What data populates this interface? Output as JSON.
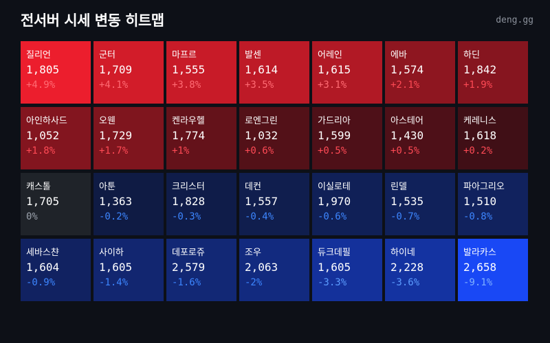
{
  "header": {
    "title": "전서버 시세 변동 히트맵",
    "brand": "deng.gg"
  },
  "colors": {
    "up_text": "#ff4a55",
    "down_text": "#3d86ff",
    "flat_text": "#9aa1ab",
    "flat_bg": "#1f2329"
  },
  "tiles": [
    {
      "name": "질리언",
      "price": "1,805",
      "change": "+4.9%",
      "pct": 4.9
    },
    {
      "name": "군터",
      "price": "1,709",
      "change": "+4.1%",
      "pct": 4.1
    },
    {
      "name": "마프르",
      "price": "1,555",
      "change": "+3.8%",
      "pct": 3.8
    },
    {
      "name": "발센",
      "price": "1,614",
      "change": "+3.5%",
      "pct": 3.5
    },
    {
      "name": "어레인",
      "price": "1,615",
      "change": "+3.1%",
      "pct": 3.1
    },
    {
      "name": "에바",
      "price": "1,574",
      "change": "+2.1%",
      "pct": 2.1
    },
    {
      "name": "하딘",
      "price": "1,842",
      "change": "+1.9%",
      "pct": 1.9
    },
    {
      "name": "아인하사드",
      "price": "1,052",
      "change": "+1.8%",
      "pct": 1.8
    },
    {
      "name": "오웬",
      "price": "1,729",
      "change": "+1.7%",
      "pct": 1.7
    },
    {
      "name": "켄라우헬",
      "price": "1,774",
      "change": "+1%",
      "pct": 1.0
    },
    {
      "name": "로엔그린",
      "price": "1,032",
      "change": "+0.6%",
      "pct": 0.6
    },
    {
      "name": "가드리아",
      "price": "1,599",
      "change": "+0.5%",
      "pct": 0.5
    },
    {
      "name": "아스테어",
      "price": "1,430",
      "change": "+0.5%",
      "pct": 0.5
    },
    {
      "name": "케레니스",
      "price": "1,618",
      "change": "+0.2%",
      "pct": 0.2
    },
    {
      "name": "캐스톨",
      "price": "1,705",
      "change": "0%",
      "pct": 0
    },
    {
      "name": "아툰",
      "price": "1,363",
      "change": "-0.2%",
      "pct": -0.2
    },
    {
      "name": "크리스터",
      "price": "1,828",
      "change": "-0.3%",
      "pct": -0.3
    },
    {
      "name": "데컨",
      "price": "1,557",
      "change": "-0.4%",
      "pct": -0.4
    },
    {
      "name": "이실로테",
      "price": "1,970",
      "change": "-0.6%",
      "pct": -0.6
    },
    {
      "name": "린델",
      "price": "1,535",
      "change": "-0.7%",
      "pct": -0.7
    },
    {
      "name": "파아그리오",
      "price": "1,510",
      "change": "-0.8%",
      "pct": -0.8
    },
    {
      "name": "세바스챤",
      "price": "1,604",
      "change": "-0.9%",
      "pct": -0.9
    },
    {
      "name": "사이하",
      "price": "1,605",
      "change": "-1.4%",
      "pct": -1.4
    },
    {
      "name": "데포로쥬",
      "price": "2,579",
      "change": "-1.6%",
      "pct": -1.6
    },
    {
      "name": "조우",
      "price": "2,063",
      "change": "-2%",
      "pct": -2.0
    },
    {
      "name": "듀크데필",
      "price": "1,605",
      "change": "-3.3%",
      "pct": -3.3
    },
    {
      "name": "하이네",
      "price": "2,228",
      "change": "-3.6%",
      "pct": -3.6
    },
    {
      "name": "발라카스",
      "price": "2,658",
      "change": "-9.1%",
      "pct": -9.1
    }
  ]
}
